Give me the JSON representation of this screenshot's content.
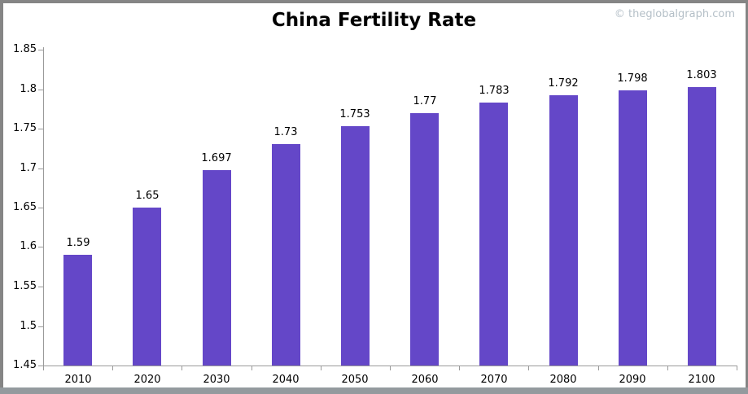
{
  "title": "China Fertility Rate",
  "watermark": "© theglobalgraph.com",
  "chart_data": {
    "type": "bar",
    "title": "China Fertility Rate",
    "categories": [
      "2010",
      "2020",
      "2030",
      "2040",
      "2050",
      "2060",
      "2070",
      "2080",
      "2090",
      "2100"
    ],
    "values": [
      1.59,
      1.65,
      1.697,
      1.73,
      1.753,
      1.77,
      1.783,
      1.792,
      1.798,
      1.803
    ],
    "value_labels": [
      "1.59",
      "1.65",
      "1.697",
      "1.73",
      "1.753",
      "1.77",
      "1.783",
      "1.792",
      "1.798",
      "1.803"
    ],
    "xlabel": "",
    "ylabel": "",
    "ylim": [
      1.45,
      1.85
    ],
    "ytick_step": 0.05,
    "ytick_labels": [
      "1.45",
      "1.5",
      "1.55",
      "1.6",
      "1.65",
      "1.7",
      "1.75",
      "1.8",
      "1.85"
    ],
    "grid": false,
    "legend": null
  },
  "colors": {
    "bar": "#6447c8",
    "axis": "#9a9a9a",
    "text": "#000000",
    "watermark": "#b4bfc7",
    "frame_border": "#858585",
    "bottom_border": "#949a9e",
    "background": "#ffffff"
  }
}
